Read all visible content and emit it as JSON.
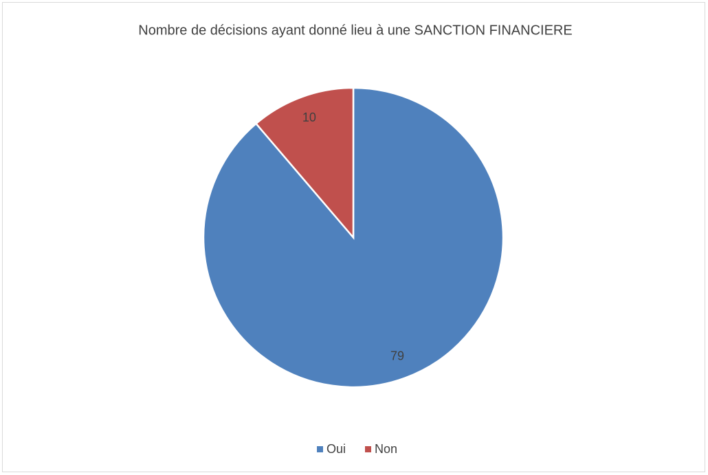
{
  "chart_data": {
    "type": "pie",
    "title": "Nombre de décisions ayant donné lieu à une SANCTION FINANCIERE",
    "categories": [
      "Oui",
      "Non"
    ],
    "values": [
      79,
      10
    ],
    "colors": [
      "#4f81bd",
      "#c0504d"
    ],
    "legend": "bottom"
  }
}
